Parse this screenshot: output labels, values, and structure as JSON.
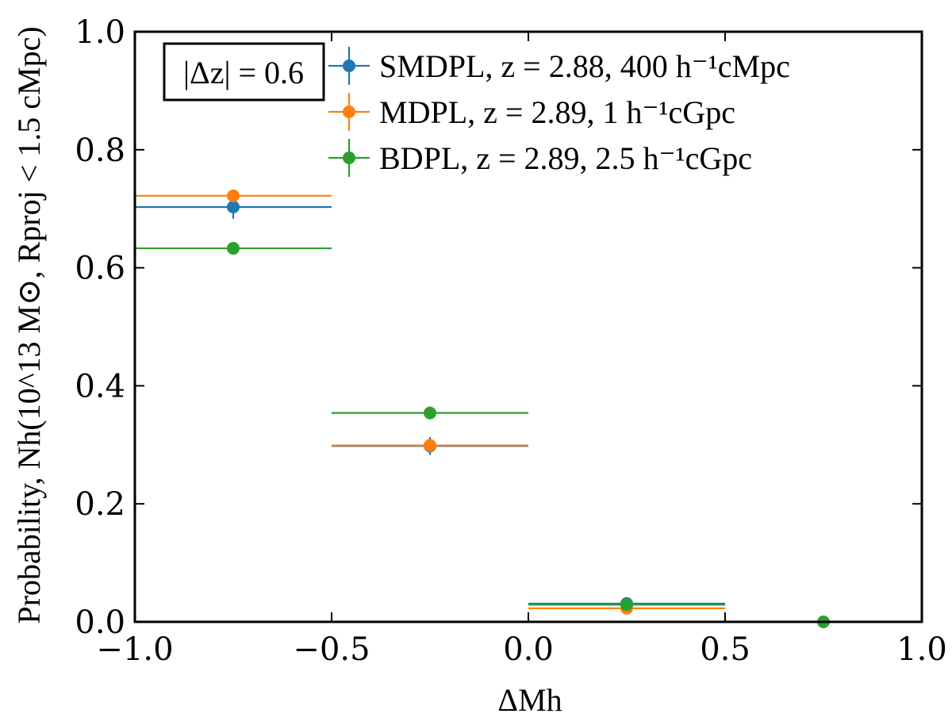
{
  "chart_data": {
    "type": "scatter",
    "xlabel": "ΔMh",
    "ylabel": "Probability, Nh(10^13 M⊙, Rproj < 1.5 cMpc)",
    "xlim": [
      -1.0,
      1.0
    ],
    "ylim": [
      0.0,
      1.0
    ],
    "grid": false,
    "xticks": [
      -1.0,
      -0.5,
      0.0,
      0.5,
      1.0
    ],
    "xtick_labels": [
      "−1.0",
      "−0.5",
      "0.0",
      "0.5",
      "1.0"
    ],
    "yticks": [
      0.0,
      0.2,
      0.4,
      0.6,
      0.8,
      1.0
    ],
    "ytick_labels": [
      "0.0",
      "0.2",
      "0.4",
      "0.6",
      "0.8",
      "1.0"
    ],
    "annotation": "|Δz| = 0.6",
    "legend_placement": "top-right",
    "series": [
      {
        "name": "SMDPL, z = 2.88, 400 h⁻¹cMpc",
        "color": "#1f77b4",
        "x": [
          -0.75,
          -0.25,
          0.25
        ],
        "xerr": [
          0.25,
          0.25,
          0.25
        ],
        "y": [
          0.703,
          0.298,
          0.031
        ],
        "yerr": [
          0.02,
          0.015,
          0.004
        ]
      },
      {
        "name": "MDPL, z = 2.89, 1 h⁻¹cGpc",
        "color": "#ff7f0e",
        "x": [
          -0.75,
          -0.25,
          0.25
        ],
        "xerr": [
          0.25,
          0.25,
          0.25
        ],
        "y": [
          0.722,
          0.299,
          0.023
        ],
        "yerr": [
          0.006,
          0.005,
          0.002
        ]
      },
      {
        "name": "BDPL, z = 2.89, 2.5 h⁻¹cGpc",
        "color": "#2ca02c",
        "x": [
          -0.75,
          -0.25,
          0.25,
          0.75
        ],
        "xerr": [
          0.25,
          0.25,
          0.25,
          0.25
        ],
        "y": [
          0.633,
          0.354,
          0.029,
          0.0
        ],
        "yerr": [
          0.002,
          0.002,
          0.001,
          0.0
        ]
      }
    ]
  }
}
